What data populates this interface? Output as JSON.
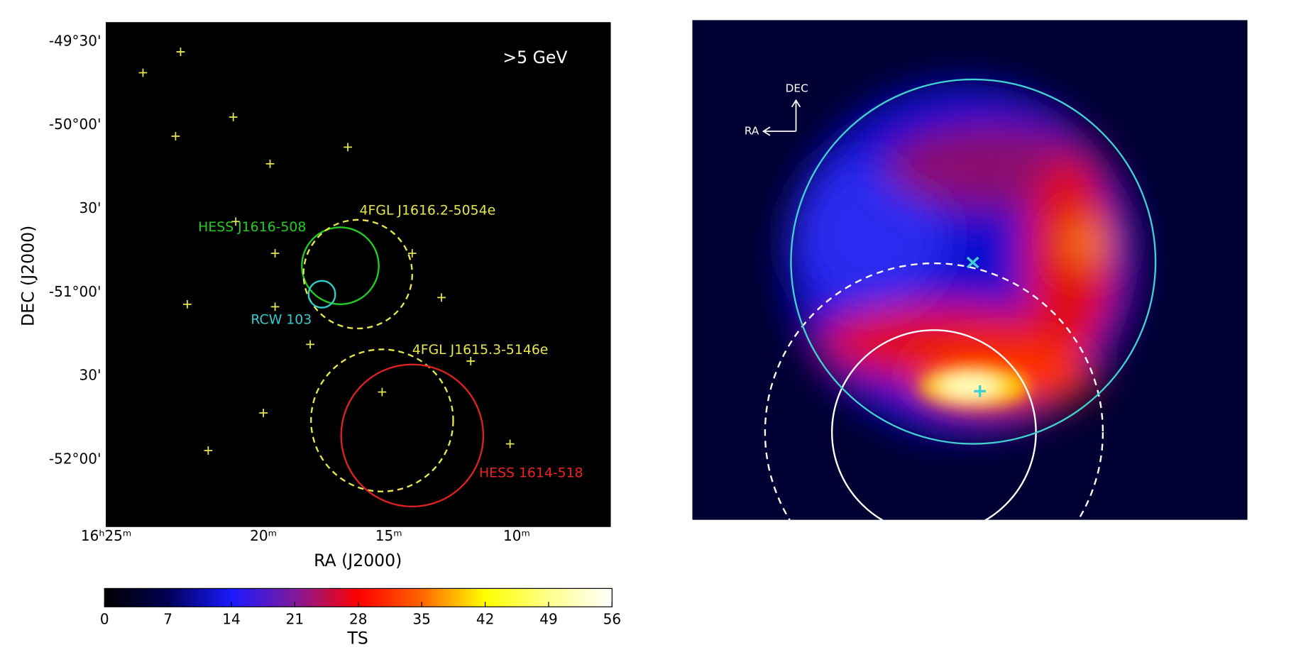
{
  "left_panel": {
    "energy": ">5 GeV",
    "x_label": "RA (J2000)",
    "y_label": "DEC (J2000)",
    "x_ticks": [
      "16ʰ25ᵐ",
      "20ᵐ",
      "15ᵐ",
      "10ᵐ"
    ],
    "y_ticks": [
      "-49°30'",
      "-50°00'",
      "30'",
      "-51°00'",
      "30'",
      "-52°00'"
    ],
    "sources": [
      "4FGL J1616.2-5054e",
      "HESS J1616-508",
      "RCW 103",
      "4FGL J1615.3-5146e",
      "HESS 1614-518"
    ]
  },
  "colorbar": {
    "label": "TS",
    "lim": [
      0,
      56
    ],
    "ticks": [
      0,
      7,
      14,
      21,
      28,
      35,
      42,
      49,
      56
    ]
  },
  "right_panel": {
    "dec_label": "DEC",
    "ra_label": "RA"
  }
}
